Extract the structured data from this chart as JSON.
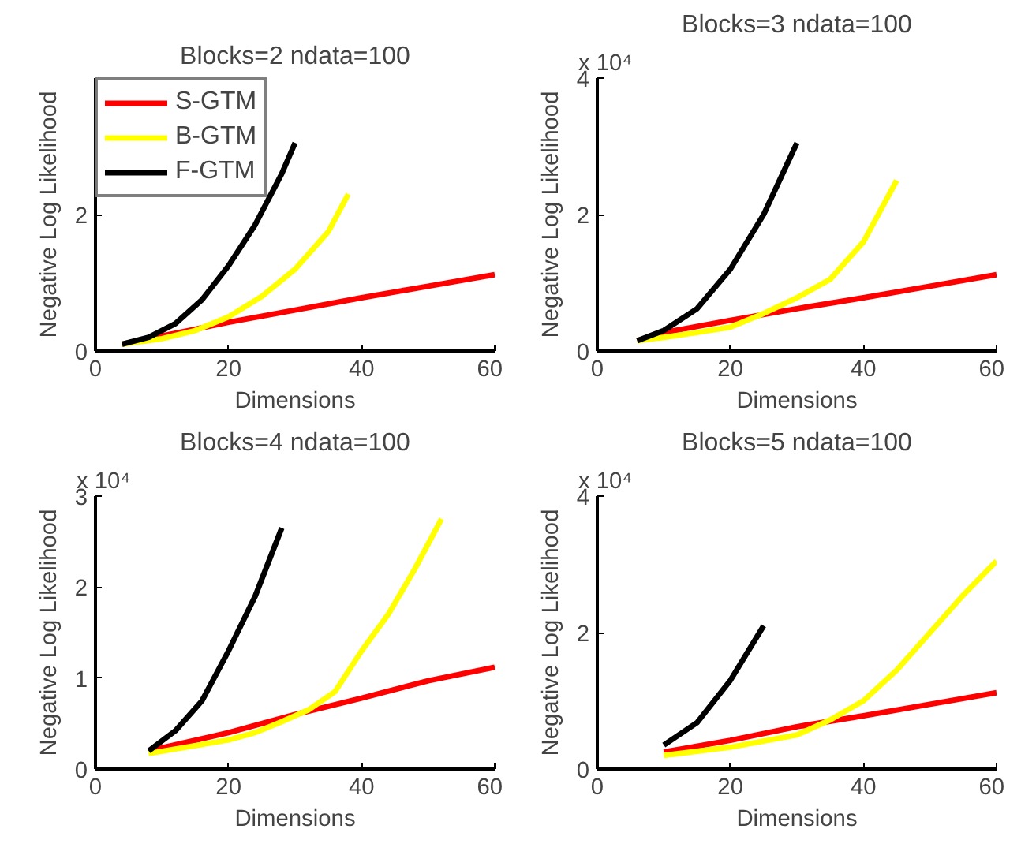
{
  "chart_data": [
    {
      "type": "line",
      "title": "Blocks=2 ndata=100",
      "xlabel": "Dimensions",
      "ylabel": "Negative Log Likelihood",
      "xlim": [
        0,
        60
      ],
      "xticks": [
        0,
        20,
        40,
        60
      ],
      "ylim": [
        0,
        4
      ],
      "yticks": [
        0,
        2
      ],
      "grid": false,
      "legend": "top left",
      "line_style": "solid",
      "series": [
        {
          "name": "S-GTM",
          "color": "#ff0000",
          "x": [
            4,
            10,
            15,
            20,
            30,
            40,
            50,
            60
          ],
          "values": [
            0.1,
            0.22,
            0.32,
            0.42,
            0.6,
            0.78,
            0.95,
            1.12
          ]
        },
        {
          "name": "B-GTM",
          "color": "#ffff00",
          "x": [
            4,
            10,
            15,
            20,
            25,
            30,
            35,
            38
          ],
          "values": [
            0.1,
            0.18,
            0.3,
            0.5,
            0.8,
            1.2,
            1.75,
            2.3
          ]
        },
        {
          "name": "F-GTM",
          "color": "#000000",
          "x": [
            4,
            8,
            12,
            16,
            20,
            24,
            28,
            30
          ],
          "values": [
            0.1,
            0.2,
            0.4,
            0.75,
            1.25,
            1.85,
            2.6,
            3.05
          ]
        }
      ]
    },
    {
      "type": "line",
      "title": "Blocks=3 ndata=100",
      "xlabel": "Dimensions",
      "ylabel": "Negative Log Likelihood",
      "annotations": [
        "x 10⁴"
      ],
      "xlim": [
        0,
        60
      ],
      "xticks": [
        0,
        20,
        40,
        60
      ],
      "ylim": [
        0,
        4
      ],
      "yticks": [
        0,
        2,
        4
      ],
      "grid": false,
      "line_style": "solid",
      "series": [
        {
          "color": "#ff0000",
          "x": [
            6,
            10,
            20,
            30,
            40,
            50,
            60
          ],
          "values": [
            0.15,
            0.27,
            0.45,
            0.62,
            0.78,
            0.95,
            1.12
          ]
        },
        {
          "color": "#ffff00",
          "x": [
            6,
            10,
            15,
            20,
            25,
            30,
            35,
            40,
            45
          ],
          "values": [
            0.15,
            0.2,
            0.27,
            0.35,
            0.55,
            0.78,
            1.05,
            1.6,
            2.5
          ]
        },
        {
          "color": "#000000",
          "x": [
            6,
            10,
            15,
            20,
            25,
            30
          ],
          "values": [
            0.15,
            0.3,
            0.62,
            1.2,
            2.0,
            3.05
          ]
        }
      ]
    },
    {
      "type": "line",
      "title": "Blocks=4 ndata=100",
      "xlabel": "Dimensions",
      "ylabel": "Negative Log Likelihood",
      "annotations": [
        "x 10⁴"
      ],
      "xlim": [
        0,
        60
      ],
      "xticks": [
        0,
        20,
        40,
        60
      ],
      "ylim": [
        0,
        3
      ],
      "yticks": [
        0,
        1,
        2,
        3
      ],
      "grid": false,
      "line_style": "solid",
      "series": [
        {
          "color": "#ff0000",
          "x": [
            8,
            20,
            30,
            40,
            50,
            60
          ],
          "values": [
            0.2,
            0.4,
            0.6,
            0.78,
            0.97,
            1.12
          ]
        },
        {
          "color": "#ffff00",
          "x": [
            8,
            12,
            16,
            20,
            24,
            28,
            32,
            36,
            40,
            44,
            48,
            52
          ],
          "values": [
            0.17,
            0.22,
            0.27,
            0.32,
            0.4,
            0.52,
            0.65,
            0.85,
            1.3,
            1.7,
            2.2,
            2.75
          ]
        },
        {
          "color": "#000000",
          "x": [
            8,
            12,
            16,
            20,
            24,
            28
          ],
          "values": [
            0.2,
            0.42,
            0.75,
            1.3,
            1.9,
            2.65
          ]
        }
      ]
    },
    {
      "type": "line",
      "title": "Blocks=5 ndata=100",
      "xlabel": "Dimensions",
      "ylabel": "Negative Log Likelihood",
      "annotations": [
        "x 10⁴"
      ],
      "xlim": [
        0,
        60
      ],
      "xticks": [
        0,
        20,
        40,
        60
      ],
      "ylim": [
        0,
        4
      ],
      "yticks": [
        0,
        2,
        4
      ],
      "grid": false,
      "line_style": "solid",
      "series": [
        {
          "color": "#ff0000",
          "x": [
            10,
            20,
            30,
            40,
            50,
            60
          ],
          "values": [
            0.25,
            0.42,
            0.62,
            0.78,
            0.95,
            1.12
          ]
        },
        {
          "color": "#ffff00",
          "x": [
            10,
            20,
            30,
            35,
            40,
            45,
            50,
            55,
            60
          ],
          "values": [
            0.2,
            0.32,
            0.5,
            0.72,
            1.0,
            1.45,
            2.0,
            2.55,
            3.05
          ]
        },
        {
          "color": "#000000",
          "x": [
            10,
            15,
            20,
            25
          ],
          "values": [
            0.35,
            0.68,
            1.3,
            2.1
          ]
        }
      ]
    }
  ]
}
